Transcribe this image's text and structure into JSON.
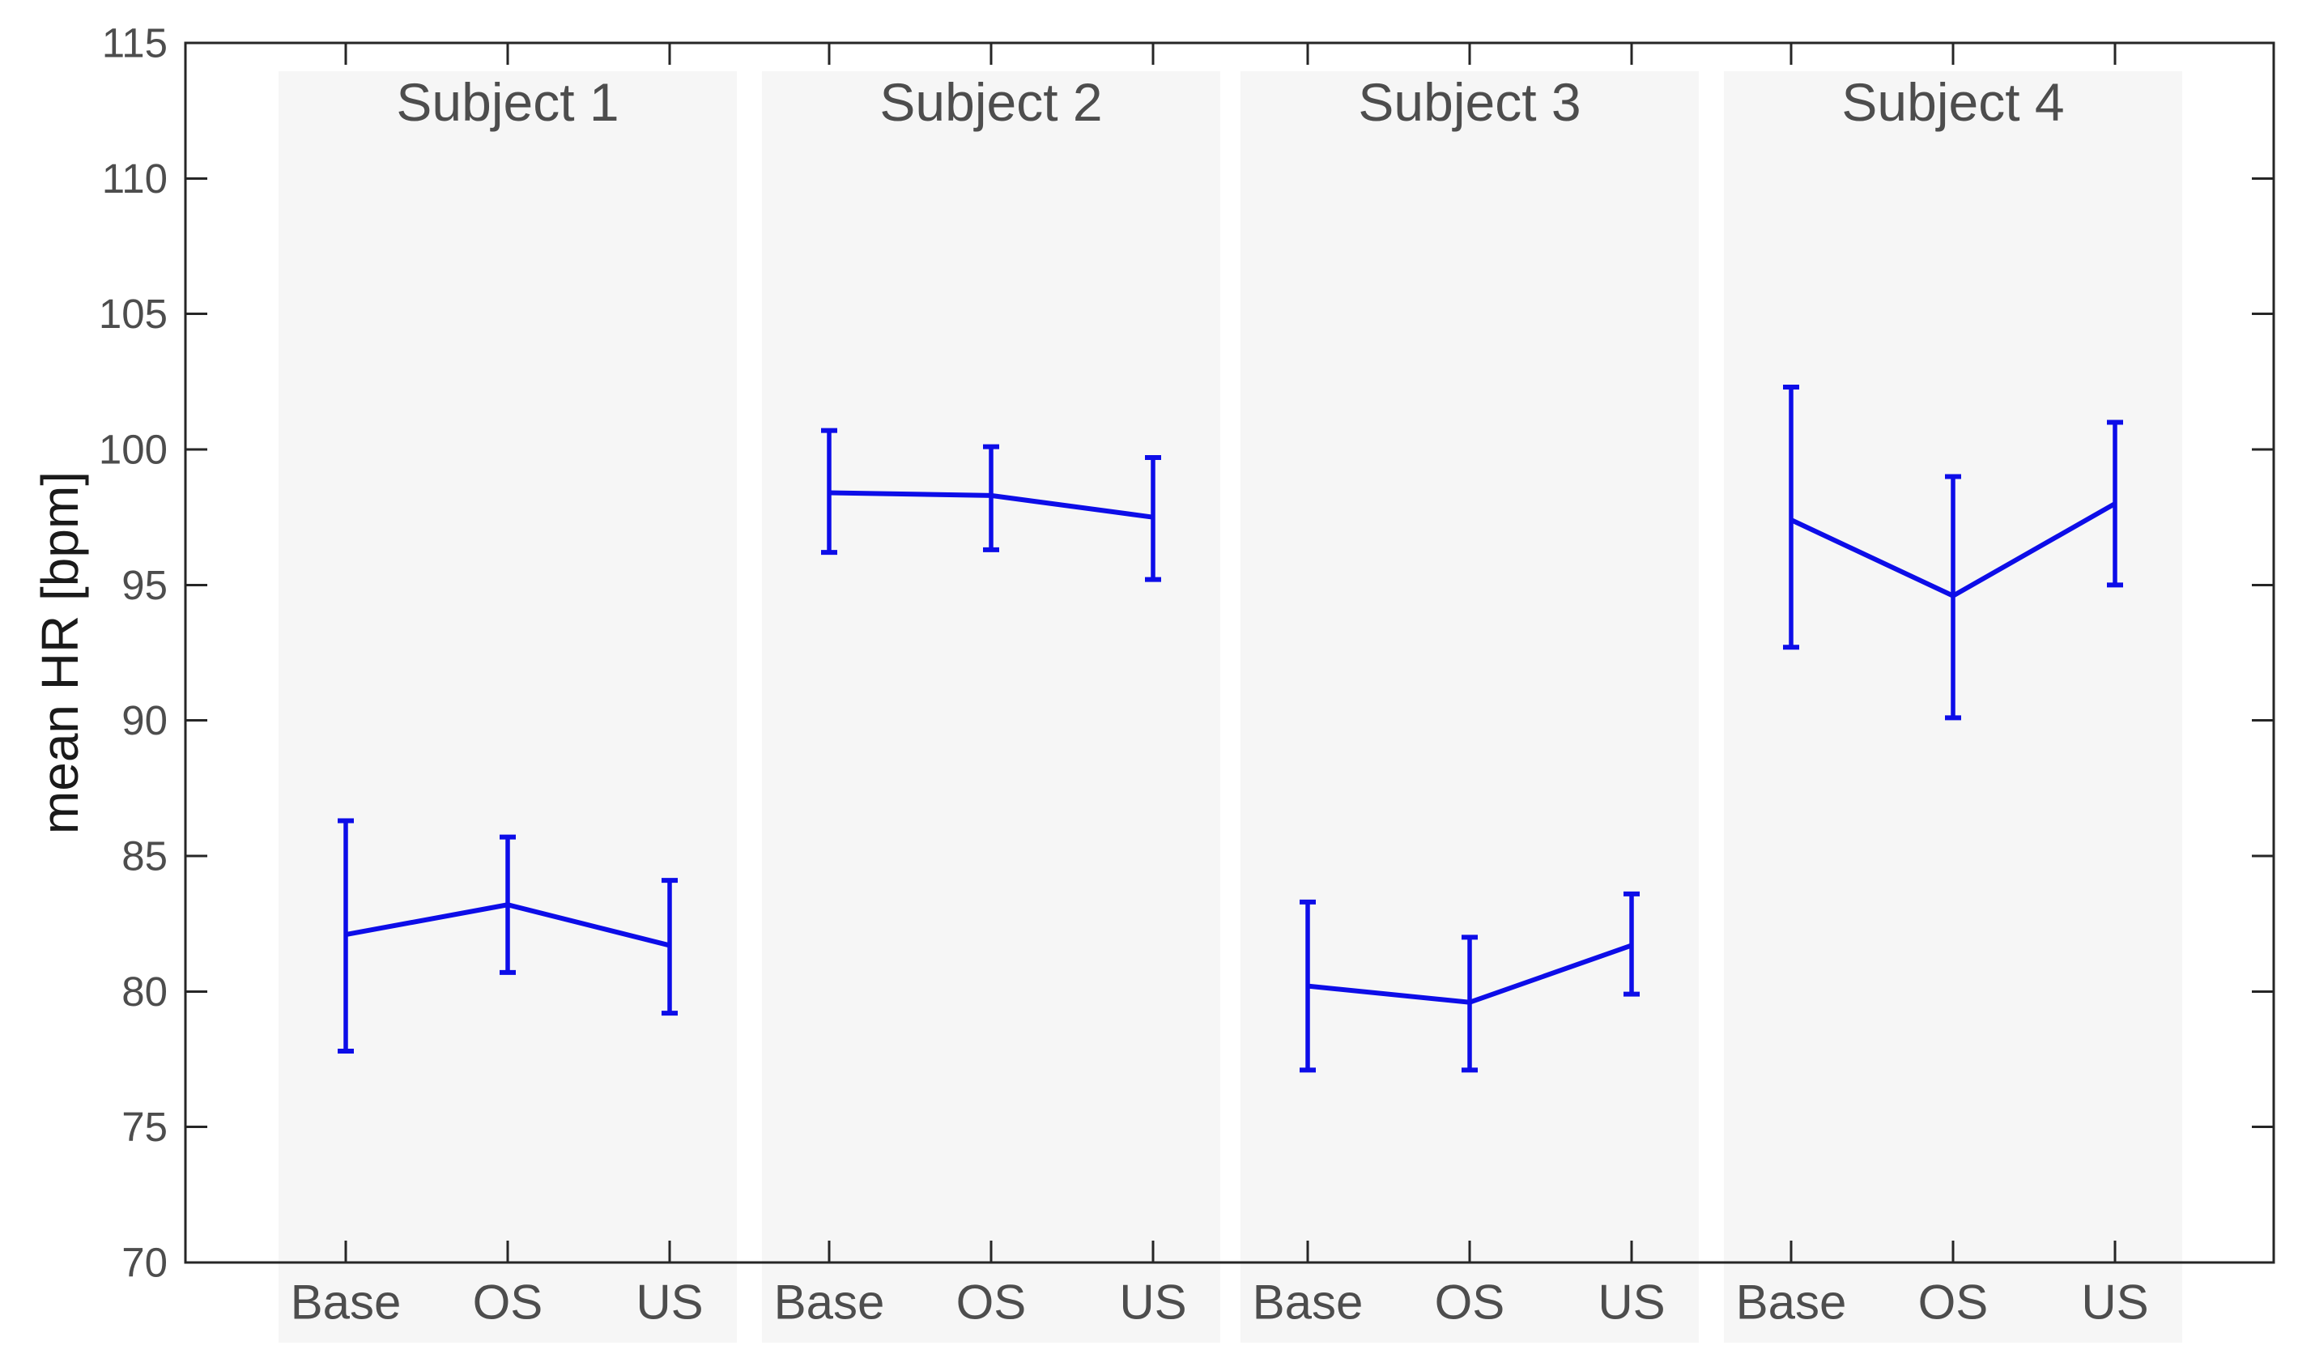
{
  "figure": {
    "background": "#ffffff"
  },
  "chart_data": {
    "type": "line",
    "subtype": "errorbar-grouped-panels",
    "title": "",
    "xlabel": "",
    "ylabel": "mean HR [bpm]",
    "ylim": [
      70,
      115
    ],
    "ytick_step": 5,
    "yticks": [
      70,
      75,
      80,
      85,
      90,
      95,
      100,
      105,
      110,
      115
    ],
    "ytick_labels": [
      "70",
      "75",
      "80",
      "85",
      "90",
      "95",
      "100",
      "105",
      "110",
      "115"
    ],
    "grid": false,
    "legend": null,
    "conditions": [
      "Base",
      "OS",
      "US"
    ],
    "panels": [
      {
        "label": "Subject 1",
        "means": [
          82.1,
          83.2,
          81.7
        ],
        "lower": [
          77.8,
          80.7,
          79.2
        ],
        "upper": [
          86.3,
          85.7,
          84.1
        ]
      },
      {
        "label": "Subject 2",
        "means": [
          98.4,
          98.3,
          97.5
        ],
        "lower": [
          96.2,
          96.3,
          95.2
        ],
        "upper": [
          100.7,
          100.1,
          99.7
        ]
      },
      {
        "label": "Subject 3",
        "means": [
          80.2,
          79.6,
          81.7
        ],
        "lower": [
          77.1,
          77.1,
          79.9
        ],
        "upper": [
          83.3,
          82.0,
          83.6
        ]
      },
      {
        "label": "Subject 4",
        "means": [
          97.4,
          94.6,
          98.0
        ],
        "lower": [
          92.7,
          90.1,
          95.0
        ],
        "upper": [
          102.3,
          99.0,
          101.0
        ]
      }
    ],
    "colors": {
      "series": "#0d0de8",
      "panel_band": "#f6f6f6",
      "axis": "#262626",
      "tick_label": "#4d4d4d",
      "panel_title": "#4d4d4d",
      "axis_label": "#1a1a1a"
    }
  }
}
